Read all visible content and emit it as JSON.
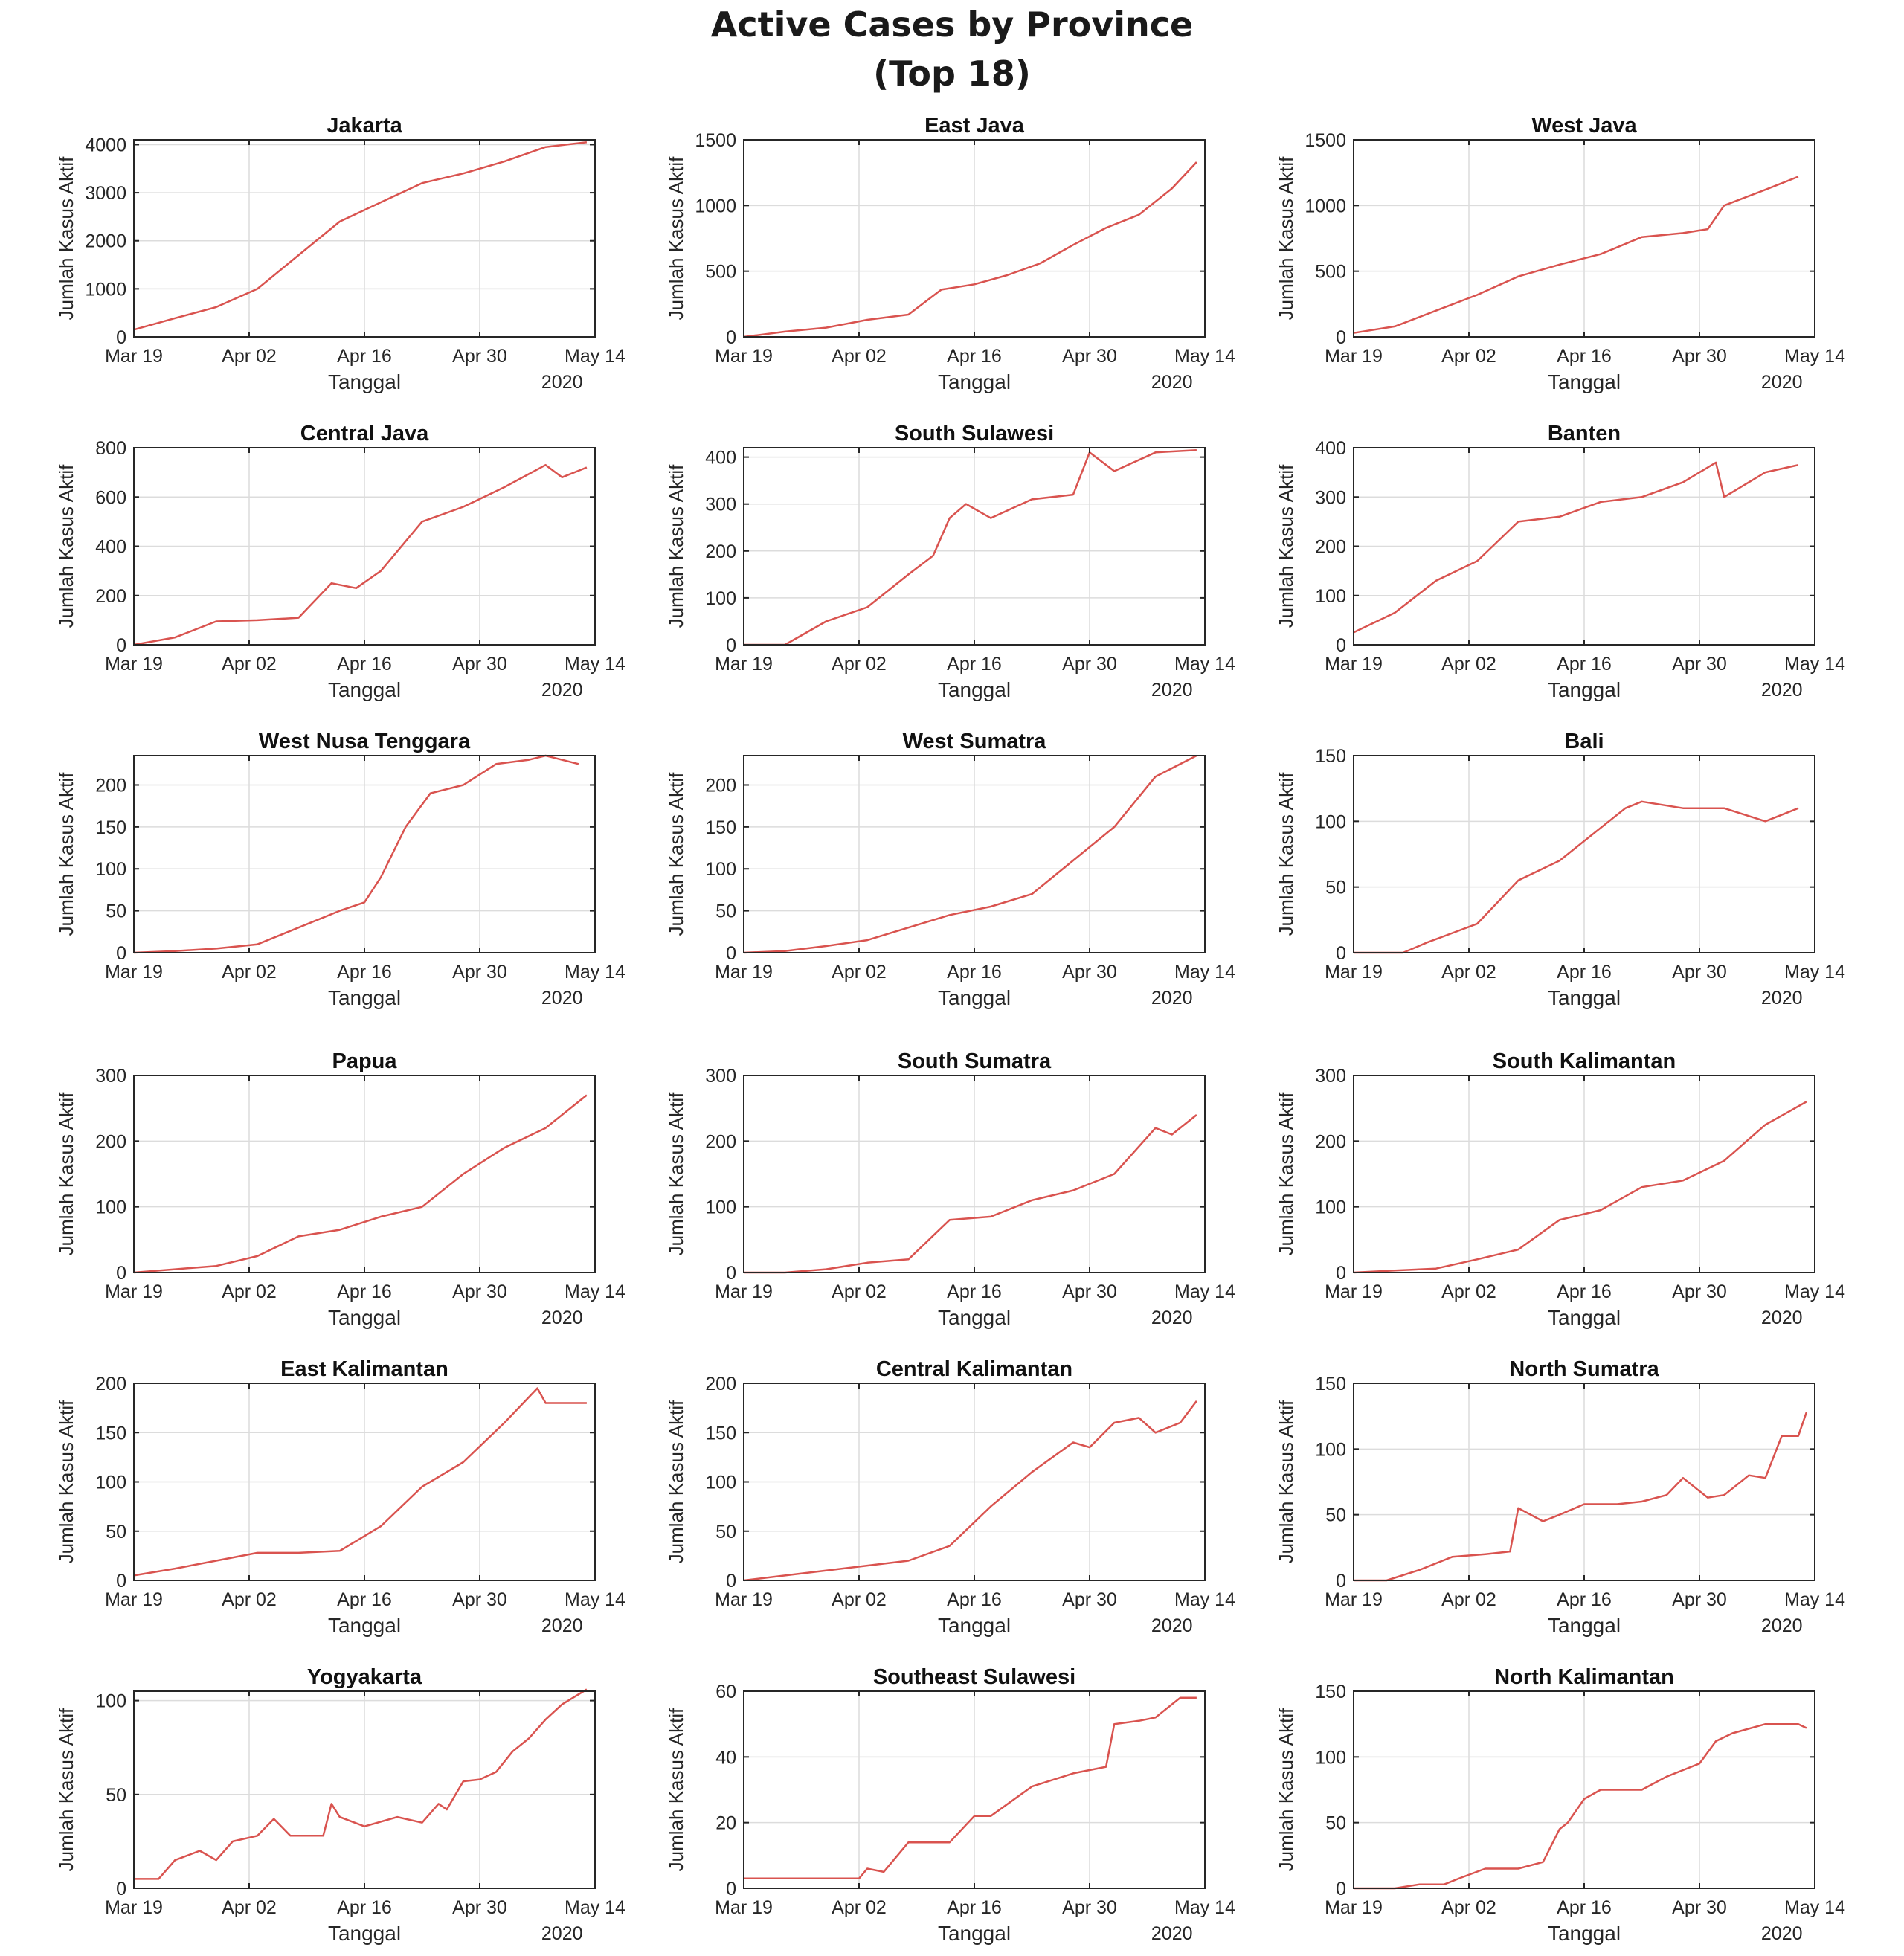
{
  "title": {
    "line1": "Active Cases by Province",
    "line2": "(Top 18)"
  },
  "colors": {
    "line": "#d9534f",
    "axis": "#262626",
    "grid": "#dcdcdc",
    "text": "#262626"
  },
  "chart_data": [
    {
      "type": "line",
      "title": "Jakarta",
      "xlabel": "Tanggal",
      "ylabel": "Jumlah Kasus Aktif",
      "x_ticks": [
        "Mar 19",
        "Apr 02",
        "Apr 16",
        "Apr 30",
        "May 14"
      ],
      "x_year": "2020",
      "ylim": [
        0,
        4100
      ],
      "y_ticks": [
        "0",
        "1000",
        "2000",
        "3000",
        "4000"
      ],
      "grid": true,
      "x_days": [
        0,
        5,
        10,
        15,
        20,
        25,
        30,
        35,
        40,
        45,
        50,
        55
      ],
      "values": [
        150,
        390,
        620,
        1000,
        1700,
        2400,
        2800,
        3200,
        3400,
        3650,
        3950,
        4050
      ]
    },
    {
      "type": "line",
      "title": "East Java",
      "xlabel": "Tanggal",
      "ylabel": "Jumlah Kasus Aktif",
      "x_ticks": [
        "Mar 19",
        "Apr 02",
        "Apr 16",
        "Apr 30",
        "May 14"
      ],
      "x_year": "2020",
      "ylim": [
        0,
        1500
      ],
      "y_ticks": [
        "0",
        "500",
        "1000",
        "1500"
      ],
      "grid": true,
      "x_days": [
        0,
        5,
        10,
        15,
        20,
        24,
        28,
        32,
        36,
        40,
        44,
        48,
        52,
        55
      ],
      "values": [
        0,
        40,
        70,
        130,
        170,
        360,
        400,
        470,
        560,
        700,
        830,
        930,
        1130,
        1330
      ]
    },
    {
      "type": "line",
      "title": "West Java",
      "xlabel": "Tanggal",
      "ylabel": "Jumlah Kasus Aktif",
      "x_ticks": [
        "Mar 19",
        "Apr 02",
        "Apr 16",
        "Apr 30",
        "May 14"
      ],
      "x_year": "2020",
      "ylim": [
        0,
        1500
      ],
      "y_ticks": [
        "0",
        "500",
        "1000",
        "1500"
      ],
      "grid": true,
      "x_days": [
        0,
        5,
        10,
        15,
        20,
        25,
        30,
        35,
        40,
        43,
        45,
        50,
        54
      ],
      "values": [
        30,
        80,
        200,
        320,
        460,
        550,
        630,
        760,
        790,
        820,
        1000,
        1120,
        1220
      ]
    },
    {
      "type": "line",
      "title": "Central Java",
      "xlabel": "Tanggal",
      "ylabel": "Jumlah Kasus Aktif",
      "x_ticks": [
        "Mar 19",
        "Apr 02",
        "Apr 16",
        "Apr 30",
        "May 14"
      ],
      "x_year": "2020",
      "ylim": [
        0,
        800
      ],
      "y_ticks": [
        "0",
        "200",
        "400",
        "600",
        "800"
      ],
      "grid": true,
      "x_days": [
        0,
        5,
        10,
        15,
        20,
        24,
        27,
        30,
        35,
        40,
        45,
        50,
        52,
        55
      ],
      "values": [
        0,
        30,
        95,
        100,
        110,
        250,
        230,
        300,
        500,
        560,
        640,
        730,
        680,
        720
      ]
    },
    {
      "type": "line",
      "title": "South Sulawesi",
      "xlabel": "Tanggal",
      "ylabel": "Jumlah Kasus Aktif",
      "x_ticks": [
        "Mar 19",
        "Apr 02",
        "Apr 16",
        "Apr 30",
        "May 14"
      ],
      "x_year": "2020",
      "ylim": [
        0,
        420
      ],
      "y_ticks": [
        "0",
        "100",
        "200",
        "300",
        "400"
      ],
      "grid": true,
      "x_days": [
        0,
        5,
        10,
        15,
        20,
        23,
        25,
        27,
        30,
        35,
        40,
        42,
        45,
        50,
        55
      ],
      "values": [
        0,
        0,
        50,
        80,
        150,
        190,
        270,
        300,
        270,
        310,
        320,
        410,
        370,
        410,
        415
      ]
    },
    {
      "type": "line",
      "title": "Banten",
      "xlabel": "Tanggal",
      "ylabel": "Jumlah Kasus Aktif",
      "x_ticks": [
        "Mar 19",
        "Apr 02",
        "Apr 16",
        "Apr 30",
        "May 14"
      ],
      "x_year": "2020",
      "ylim": [
        0,
        400
      ],
      "y_ticks": [
        "0",
        "100",
        "200",
        "300",
        "400"
      ],
      "grid": true,
      "x_days": [
        0,
        5,
        10,
        15,
        20,
        25,
        30,
        35,
        40,
        44,
        45,
        50,
        54
      ],
      "values": [
        25,
        65,
        130,
        170,
        250,
        260,
        290,
        300,
        330,
        370,
        300,
        350,
        365
      ]
    },
    {
      "type": "line",
      "title": "West Nusa Tenggara",
      "xlabel": "Tanggal",
      "ylabel": "Jumlah Kasus Aktif",
      "x_ticks": [
        "Mar 19",
        "Apr 02",
        "Apr 16",
        "Apr 30",
        "May 14"
      ],
      "x_year": "2020",
      "ylim": [
        0,
        235
      ],
      "y_ticks": [
        "0",
        "50",
        "100",
        "150",
        "200"
      ],
      "grid": true,
      "x_days": [
        0,
        5,
        10,
        15,
        20,
        25,
        28,
        30,
        33,
        36,
        40,
        44,
        48,
        50,
        54
      ],
      "values": [
        0,
        2,
        5,
        10,
        30,
        50,
        60,
        90,
        150,
        190,
        200,
        225,
        230,
        235,
        225
      ]
    },
    {
      "type": "line",
      "title": "West Sumatra",
      "xlabel": "Tanggal",
      "ylabel": "Jumlah Kasus Aktif",
      "x_ticks": [
        "Mar 19",
        "Apr 02",
        "Apr 16",
        "Apr 30",
        "May 14"
      ],
      "x_year": "2020",
      "ylim": [
        0,
        235
      ],
      "y_ticks": [
        "0",
        "50",
        "100",
        "150",
        "200"
      ],
      "grid": true,
      "x_days": [
        0,
        5,
        10,
        15,
        20,
        25,
        30,
        35,
        40,
        45,
        50,
        55
      ],
      "values": [
        0,
        2,
        8,
        15,
        30,
        45,
        55,
        70,
        110,
        150,
        210,
        235
      ]
    },
    {
      "type": "line",
      "title": "Bali",
      "xlabel": "Tanggal",
      "ylabel": "Jumlah Kasus Aktif",
      "x_ticks": [
        "Mar 19",
        "Apr 02",
        "Apr 16",
        "Apr 30",
        "May 14"
      ],
      "x_year": "2020",
      "ylim": [
        0,
        150
      ],
      "y_ticks": [
        "0",
        "50",
        "100",
        "150"
      ],
      "grid": true,
      "x_days": [
        0,
        6,
        9,
        12,
        15,
        20,
        25,
        30,
        33,
        35,
        40,
        45,
        50,
        54
      ],
      "values": [
        0,
        0,
        8,
        15,
        22,
        55,
        70,
        95,
        110,
        115,
        110,
        110,
        100,
        110
      ]
    },
    {
      "type": "line",
      "title": "Papua",
      "xlabel": "Tanggal",
      "ylabel": "Jumlah Kasus Aktif",
      "x_ticks": [
        "Mar 19",
        "Apr 02",
        "Apr 16",
        "Apr 30",
        "May 14"
      ],
      "x_year": "2020",
      "ylim": [
        0,
        300
      ],
      "y_ticks": [
        "0",
        "100",
        "200",
        "300"
      ],
      "grid": true,
      "x_days": [
        0,
        5,
        10,
        15,
        20,
        25,
        30,
        35,
        40,
        45,
        50,
        55
      ],
      "values": [
        0,
        5,
        10,
        25,
        55,
        65,
        85,
        100,
        150,
        190,
        220,
        270
      ]
    },
    {
      "type": "line",
      "title": "South Sumatra",
      "xlabel": "Tanggal",
      "ylabel": "Jumlah Kasus Aktif",
      "x_ticks": [
        "Mar 19",
        "Apr 02",
        "Apr 16",
        "Apr 30",
        "May 14"
      ],
      "x_year": "2020",
      "ylim": [
        0,
        300
      ],
      "y_ticks": [
        "0",
        "100",
        "200",
        "300"
      ],
      "grid": true,
      "x_days": [
        0,
        5,
        10,
        15,
        20,
        25,
        30,
        35,
        40,
        45,
        50,
        52,
        55
      ],
      "values": [
        0,
        0,
        5,
        15,
        20,
        80,
        85,
        110,
        125,
        150,
        220,
        210,
        240
      ]
    },
    {
      "type": "line",
      "title": "South Kalimantan",
      "xlabel": "Tanggal",
      "ylabel": "Jumlah Kasus Aktif",
      "x_ticks": [
        "Mar 19",
        "Apr 02",
        "Apr 16",
        "Apr 30",
        "May 14"
      ],
      "x_year": "2020",
      "ylim": [
        0,
        300
      ],
      "y_ticks": [
        "0",
        "100",
        "200",
        "300"
      ],
      "grid": true,
      "x_days": [
        0,
        5,
        10,
        15,
        20,
        25,
        30,
        35,
        40,
        45,
        50,
        55
      ],
      "values": [
        0,
        3,
        6,
        20,
        35,
        80,
        95,
        130,
        140,
        170,
        225,
        260
      ]
    },
    {
      "type": "line",
      "title": "East Kalimantan",
      "xlabel": "Tanggal",
      "ylabel": "Jumlah Kasus Aktif",
      "x_ticks": [
        "Mar 19",
        "Apr 02",
        "Apr 16",
        "Apr 30",
        "May 14"
      ],
      "x_year": "2020",
      "ylim": [
        0,
        200
      ],
      "y_ticks": [
        "0",
        "50",
        "100",
        "150",
        "200"
      ],
      "grid": true,
      "x_days": [
        0,
        5,
        10,
        15,
        20,
        25,
        30,
        35,
        40,
        45,
        49,
        50,
        55
      ],
      "values": [
        5,
        12,
        20,
        28,
        28,
        30,
        55,
        95,
        120,
        160,
        195,
        180,
        180
      ]
    },
    {
      "type": "line",
      "title": "Central Kalimantan",
      "xlabel": "Tanggal",
      "ylabel": "Jumlah Kasus Aktif",
      "x_ticks": [
        "Mar 19",
        "Apr 02",
        "Apr 16",
        "Apr 30",
        "May 14"
      ],
      "x_year": "2020",
      "ylim": [
        0,
        200
      ],
      "y_ticks": [
        "0",
        "50",
        "100",
        "150",
        "200"
      ],
      "grid": true,
      "x_days": [
        0,
        5,
        10,
        15,
        20,
        25,
        30,
        35,
        40,
        42,
        45,
        48,
        50,
        53,
        55
      ],
      "values": [
        0,
        5,
        10,
        15,
        20,
        35,
        75,
        110,
        140,
        135,
        160,
        165,
        150,
        160,
        182
      ]
    },
    {
      "type": "line",
      "title": "North Sumatra",
      "xlabel": "Tanggal",
      "ylabel": "Jumlah Kasus Aktif",
      "x_ticks": [
        "Mar 19",
        "Apr 02",
        "Apr 16",
        "Apr 30",
        "May 14"
      ],
      "x_year": "2020",
      "ylim": [
        0,
        150
      ],
      "y_ticks": [
        "0",
        "50",
        "100",
        "150"
      ],
      "grid": true,
      "x_days": [
        0,
        4,
        8,
        12,
        16,
        19,
        20,
        23,
        25,
        28,
        32,
        35,
        38,
        40,
        43,
        45,
        48,
        50,
        52,
        54,
        55
      ],
      "values": [
        0,
        0,
        8,
        18,
        20,
        22,
        55,
        45,
        50,
        58,
        58,
        60,
        65,
        78,
        63,
        65,
        80,
        78,
        110,
        110,
        128
      ]
    },
    {
      "type": "line",
      "title": "Yogyakarta",
      "xlabel": "Tanggal",
      "ylabel": "Jumlah Kasus Aktif",
      "x_ticks": [
        "Mar 19",
        "Apr 02",
        "Apr 16",
        "Apr 30",
        "May 14"
      ],
      "x_year": "2020",
      "ylim": [
        0,
        105
      ],
      "y_ticks": [
        "0",
        "50",
        "100"
      ],
      "grid": true,
      "x_days": [
        0,
        3,
        5,
        8,
        10,
        12,
        15,
        17,
        19,
        21,
        23,
        24,
        25,
        28,
        32,
        35,
        37,
        38,
        40,
        42,
        44,
        46,
        48,
        50,
        52,
        55
      ],
      "values": [
        5,
        5,
        15,
        20,
        15,
        25,
        28,
        37,
        28,
        28,
        28,
        45,
        38,
        33,
        38,
        35,
        45,
        42,
        57,
        58,
        62,
        73,
        80,
        90,
        98,
        106
      ]
    },
    {
      "type": "line",
      "title": "Southeast Sulawesi",
      "xlabel": "Tanggal",
      "ylabel": "Jumlah Kasus Aktif",
      "x_ticks": [
        "Mar 19",
        "Apr 02",
        "Apr 16",
        "Apr 30",
        "May 14"
      ],
      "x_year": "2020",
      "ylim": [
        0,
        60
      ],
      "y_ticks": [
        "0",
        "20",
        "40",
        "60"
      ],
      "grid": true,
      "x_days": [
        0,
        5,
        10,
        14,
        15,
        17,
        20,
        25,
        28,
        30,
        35,
        40,
        44,
        45,
        48,
        50,
        53,
        55
      ],
      "values": [
        3,
        3,
        3,
        3,
        6,
        5,
        14,
        14,
        22,
        22,
        31,
        35,
        37,
        50,
        51,
        52,
        58,
        58
      ]
    },
    {
      "type": "line",
      "title": "North Kalimantan",
      "xlabel": "Tanggal",
      "ylabel": "Jumlah Kasus Aktif",
      "x_ticks": [
        "Mar 19",
        "Apr 02",
        "Apr 16",
        "Apr 30",
        "May 14"
      ],
      "x_year": "2020",
      "ylim": [
        0,
        150
      ],
      "y_ticks": [
        "0",
        "50",
        "100",
        "150"
      ],
      "grid": true,
      "x_days": [
        0,
        5,
        8,
        11,
        13,
        16,
        20,
        23,
        25,
        26,
        28,
        30,
        32,
        35,
        38,
        40,
        42,
        44,
        46,
        50,
        54,
        55
      ],
      "values": [
        0,
        0,
        3,
        3,
        8,
        15,
        15,
        20,
        45,
        50,
        68,
        75,
        75,
        75,
        85,
        90,
        95,
        112,
        118,
        125,
        125,
        122
      ]
    }
  ]
}
